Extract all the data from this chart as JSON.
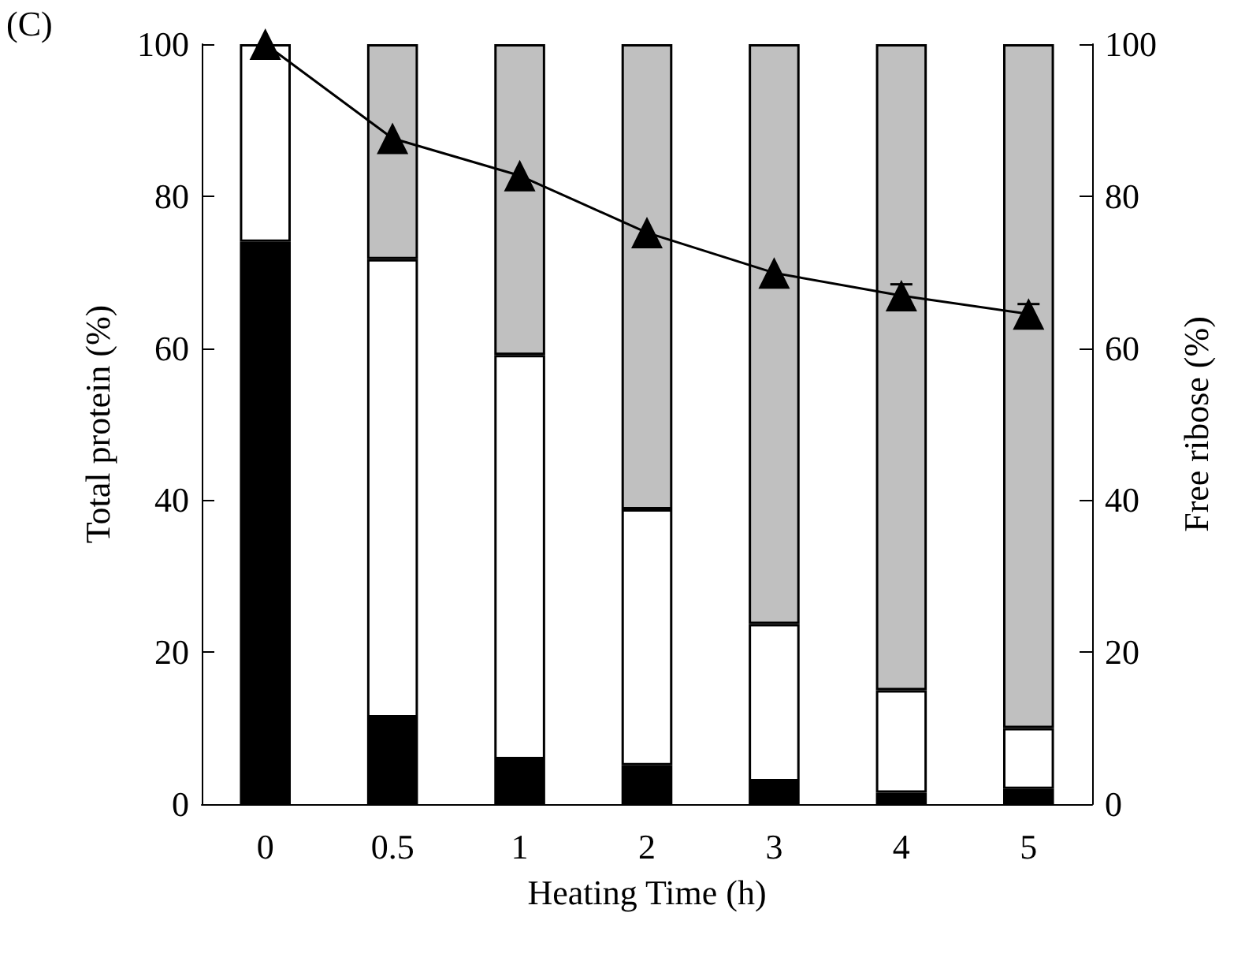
{
  "chart_data": {
    "type": "bar",
    "stacked": true,
    "xlabel": "Heating Time (h)",
    "ylabel": "Total protein (%)",
    "y2label": "Free ribose (%)",
    "annotations": [
      "(C)"
    ],
    "categories": [
      "0",
      "0.5",
      "1",
      "2",
      "3",
      "4",
      "5"
    ],
    "series": [
      {
        "color": "#000000",
        "values": [
          74,
          11.4,
          5.9,
          5.1,
          3,
          1.5,
          2
        ]
      },
      {
        "color": "#ffffff",
        "values": [
          26,
          60.3,
          53.2,
          33.7,
          20.7,
          13.5,
          8
        ]
      },
      {
        "color": "#c0c0c0",
        "values": [
          null,
          28.3,
          40.9,
          61.2,
          76.3,
          85,
          90
        ]
      },
      {
        "type": "line",
        "axis": "y2",
        "color": "#000000",
        "marker": "triangle",
        "line_style": "solid",
        "values": [
          100,
          87.6,
          82.7,
          75.2,
          69.9,
          66.9,
          64.5
        ],
        "errors": [
          null,
          null,
          null,
          null,
          null,
          1.5,
          1.3
        ]
      }
    ],
    "ylim": [
      0,
      100
    ],
    "yticks": [
      0,
      20,
      40,
      60,
      80,
      100
    ],
    "y2lim": [
      0,
      100
    ],
    "y2ticks": [
      0,
      20,
      40,
      60,
      80,
      100
    ],
    "grid": false
  }
}
